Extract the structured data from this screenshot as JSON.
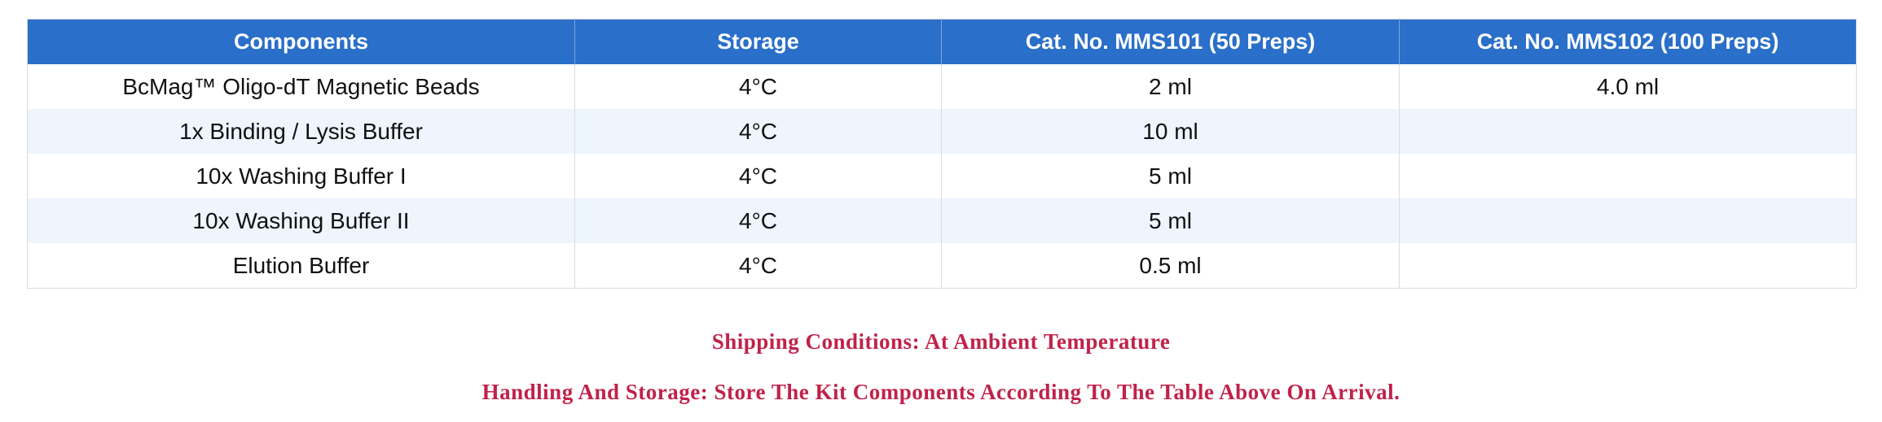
{
  "table": {
    "headers": [
      "Components",
      "Storage",
      "Cat. No. MMS101 (50 Preps)",
      "Cat. No. MMS102 (100 Preps)"
    ],
    "rows": [
      [
        "BcMag™ Oligo-dT Magnetic Beads",
        "4°C",
        "2 ml",
        "4.0 ml"
      ],
      [
        "1x Binding / Lysis Buffer",
        "4°C",
        "10 ml",
        ""
      ],
      [
        "10x Washing Buffer I",
        "4°C",
        "5 ml",
        ""
      ],
      [
        "10x Washing Buffer II",
        "4°C",
        "5 ml",
        ""
      ],
      [
        "Elution Buffer",
        "4°C",
        "0.5 ml",
        ""
      ]
    ]
  },
  "notes": {
    "shipping": "Shipping Conditions: At Ambient Temperature",
    "handling": "Handling And Storage: Store The Kit Components According To The Table Above On Arrival."
  },
  "colors": {
    "header_bg": "#2a6fc9",
    "stripe_bg": "#eef5fd",
    "note_text": "#c0224a"
  }
}
